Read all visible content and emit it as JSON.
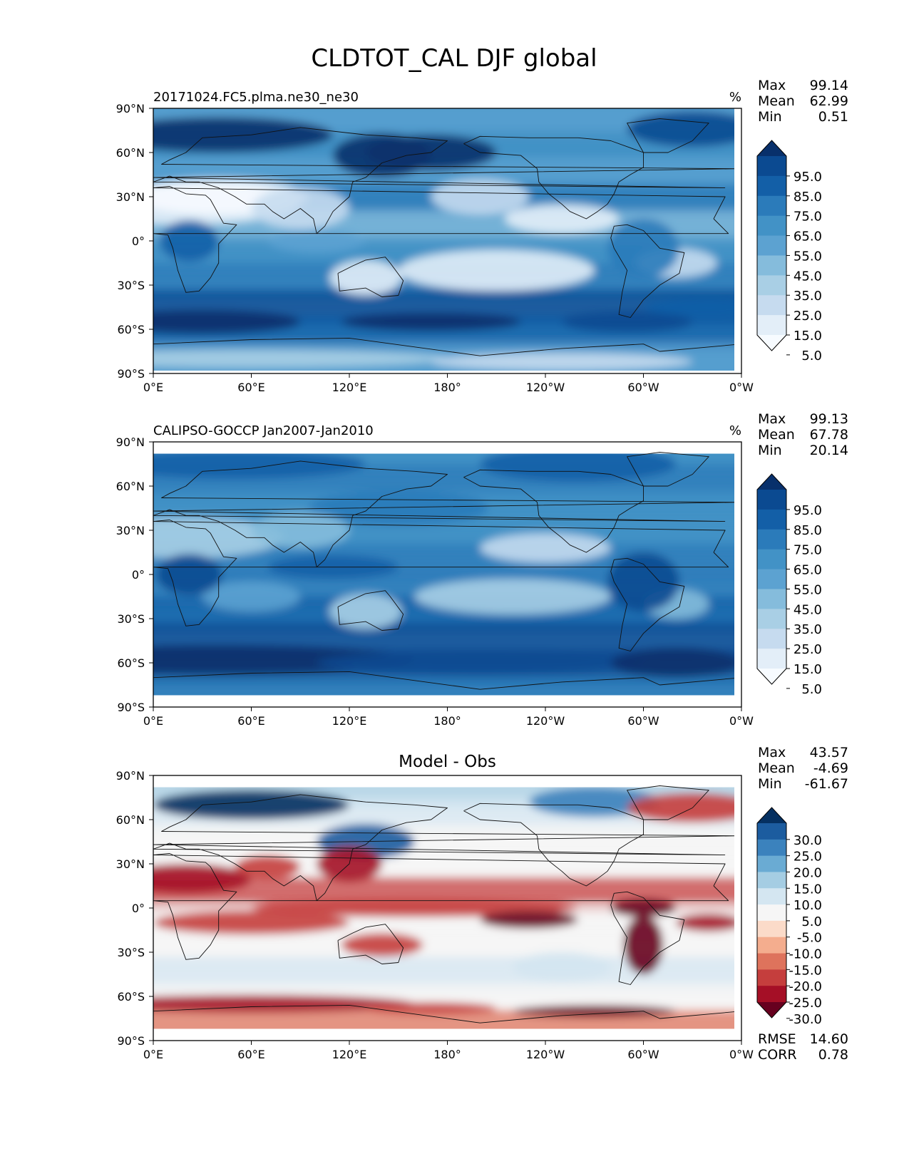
{
  "figure": {
    "title": "CLDTOT_CAL DJF global"
  },
  "chart_data": [
    {
      "type": "heatmap",
      "name": "test",
      "title": "",
      "left_label": "20171024.FC5.plma.ne30_ne30",
      "units": "%",
      "stats": [
        {
          "label": "Max",
          "value": "99.14"
        },
        {
          "label": "Mean",
          "value": "62.99"
        },
        {
          "label": "Min",
          "value": "0.51"
        }
      ],
      "colorbar": {
        "ticks": [
          "95.0",
          "85.0",
          "75.0",
          "65.0",
          "55.0",
          "45.0",
          "35.0",
          "25.0",
          "15.0",
          "5.0"
        ],
        "colors": [
          "#08306b",
          "#0b4a91",
          "#135fa7",
          "#2b7bba",
          "#4292c6",
          "#5ca2d1",
          "#85bcdc",
          "#a9cfe5",
          "#c6dbef",
          "#e3eef8",
          "#f7fbff"
        ],
        "extend": "both"
      },
      "x_ticks": [
        "0°E",
        "60°E",
        "120°E",
        "180°",
        "120°W",
        "60°W",
        "0°W"
      ],
      "y_ticks": [
        "90°N",
        "60°N",
        "30°N",
        "0°",
        "30°S",
        "60°S",
        "90°S"
      ],
      "xlim": [
        0,
        360
      ],
      "ylim": [
        -90,
        90
      ],
      "footer_stats": []
    },
    {
      "type": "heatmap",
      "name": "reference",
      "title": "",
      "left_label": "CALIPSO-GOCCP Jan2007-Jan2010",
      "units": "%",
      "stats": [
        {
          "label": "Max",
          "value": "99.13"
        },
        {
          "label": "Mean",
          "value": "67.78"
        },
        {
          "label": "Min",
          "value": "20.14"
        }
      ],
      "colorbar": {
        "ticks": [
          "95.0",
          "85.0",
          "75.0",
          "65.0",
          "55.0",
          "45.0",
          "35.0",
          "25.0",
          "15.0",
          "5.0"
        ],
        "colors": [
          "#08306b",
          "#0b4a91",
          "#135fa7",
          "#2b7bba",
          "#4292c6",
          "#5ca2d1",
          "#85bcdc",
          "#a9cfe5",
          "#c6dbef",
          "#e3eef8",
          "#f7fbff"
        ],
        "extend": "both"
      },
      "x_ticks": [
        "0°E",
        "60°E",
        "120°E",
        "180°",
        "120°W",
        "60°W",
        "0°W"
      ],
      "y_ticks": [
        "90°N",
        "60°N",
        "30°N",
        "0°",
        "30°S",
        "60°S",
        "90°S"
      ],
      "xlim": [
        0,
        360
      ],
      "ylim": [
        -90,
        90
      ],
      "footer_stats": []
    },
    {
      "type": "heatmap",
      "name": "difference",
      "title": "Model - Obs",
      "left_label": "",
      "units": "",
      "stats": [
        {
          "label": "Max",
          "value": "43.57"
        },
        {
          "label": "Mean",
          "value": "-4.69"
        },
        {
          "label": "Min",
          "value": "-61.67"
        }
      ],
      "colorbar": {
        "ticks": [
          "30.0",
          "25.0",
          "20.0",
          "15.0",
          "10.0",
          "5.0",
          "-5.0",
          "-10.0",
          "-15.0",
          "-20.0",
          "-25.0",
          "-30.0"
        ],
        "colors": [
          "#053061",
          "#1c5c9f",
          "#3b82bd",
          "#6aabd3",
          "#a5cde3",
          "#d4e6f1",
          "#f6f6f6",
          "#fbdbc9",
          "#f4ad8e",
          "#de735c",
          "#c53e3d",
          "#a50f26",
          "#67001f"
        ],
        "extend": "both"
      },
      "x_ticks": [
        "0°E",
        "60°E",
        "120°E",
        "180°",
        "120°W",
        "60°W",
        "0°W"
      ],
      "y_ticks": [
        "90°N",
        "60°N",
        "30°N",
        "0°",
        "30°S",
        "60°S",
        "90°S"
      ],
      "xlim": [
        0,
        360
      ],
      "ylim": [
        -90,
        90
      ],
      "footer_stats": [
        {
          "label": "RMSE",
          "value": "14.60"
        },
        {
          "label": "CORR",
          "value": "0.78"
        }
      ]
    }
  ]
}
